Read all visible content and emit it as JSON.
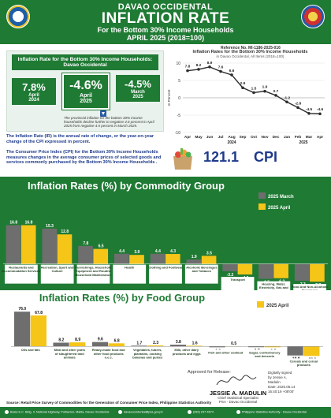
{
  "header": {
    "province": "DAVAO OCCIDENTAL",
    "title": "INFLATION RATE",
    "subtitle": "For the Bottom 30% Income Households",
    "date": "APRIL 2025 (2018=100)"
  },
  "reference": "Reference No. MI-1186-2025-016",
  "summary": {
    "title": "Inflation Rate for the Bottom 30% Income Households: Davao Occidental",
    "boxes": [
      {
        "value": "7.8%",
        "label1": "April",
        "label2": "2024"
      },
      {
        "value": "-4.6%",
        "label1": "April",
        "label2": "2025"
      },
      {
        "value": "-4.5%",
        "label1": "March",
        "label2": "2025"
      }
    ],
    "note": "The provincial inflation for the bottom 30% income households decline further to negative 4.6 percent in April 2025 from negative 4.5 percent in March 2025."
  },
  "definitions": {
    "ir": "The Inflation Rate (IR) is the annual rate of change, or the year-on-year change of the CPI expressed in percent.",
    "cpi": "The Consumer Price Index (CPI) for the Bottom 30% Income Households measures changes in the average consumer prices of selected goods and services commonly purchased by the Bottom 30% Income Households ."
  },
  "cpi": {
    "value": "121.1",
    "label": "CPI"
  },
  "sections": {
    "commodity_title": "Inflation Rates (%) by Commodity Group",
    "food_title": "Inflation Rates (%) by Food Group"
  },
  "approval": {
    "approved_label": "Approved for Release:",
    "name": "JESSIE A. MADULIN",
    "role1": "Chief Statistical Specialist",
    "role2": "PSA - Davao Occidental",
    "digital_sign": [
      "Digitally signed",
      "by Jessie A.",
      "Madulin",
      "Date: 2025.05.14",
      "16:40:19 +08'00'"
    ]
  },
  "source": "Source: Retail Price Survey of Commodities for the Generation of Consumer Price Index, Philippine Statistics Authority",
  "footer": {
    "address": "Bulac E.C. Bldg. II, National Highway, Poblacion, Malita, Davao Occidental",
    "email": "davaooccidental@psa.gov.ph",
    "phone": "(082) 237-4674",
    "facebook": "Philippine Statistics Authority - Davao Occidental"
  },
  "colors": {
    "green": "#1f7a34",
    "march": "#6e6e6e",
    "april": "#f5c518",
    "line": "#2d2d2d",
    "navy": "#1e3a8a"
  },
  "chart_data": [
    {
      "type": "line",
      "title": "Inflation Rates for the Bottom 30% Income Households",
      "subtitle": "in Davao Occidental, All Items (2018=100)",
      "ylabel": "In Percent",
      "categories": [
        "Apr",
        "May",
        "Jun",
        "Jul",
        "Aug",
        "Sep",
        "Oct",
        "Nov",
        "Dec",
        "Jan",
        "Feb",
        "Mar",
        "Apr"
      ],
      "year_labels": [
        "2024",
        "2025"
      ],
      "values": [
        7.8,
        8.2,
        8.9,
        7.6,
        6.6,
        2.9,
        1.5,
        1.9,
        0.7,
        -1.2,
        -2.8,
        -4.5,
        -4.6
      ],
      "value_labels": [
        "7.8",
        "8.2",
        "8.9",
        "7.6",
        "6.6",
        "2.9",
        "1.5",
        "1.9",
        "0.7",
        "-1.2",
        "-2.8",
        "-4.5",
        "-4.6"
      ],
      "ylim": [
        -10,
        10
      ],
      "yticks": [
        10,
        5,
        0,
        -5,
        -10
      ],
      "ytick_labels": [
        "10",
        "5",
        "0",
        "-5",
        "-10"
      ]
    },
    {
      "type": "bar",
      "title": "Inflation Rates (%) by Commodity Group",
      "legend_position": "right",
      "categories": [
        "Restaurants and Accommodation Services",
        "Recreation, Sport and Culture",
        "Furnishings, Household Equipment and Routine Household Maintenance",
        "Health",
        "Clothing and Footwear",
        "Alcoholic Beverages and Tobacco",
        "Transport",
        "Housing, Water, Electricity, Gas and Other Fuels",
        "Food And Non-Alcoholic Beverages"
      ],
      "series": [
        {
          "name": "2025 March",
          "values": [
            16.8,
            15.3,
            7.8,
            4.4,
            4.4,
            1.9,
            -3.2,
            -6.5,
            -7.3
          ],
          "labels": [
            "16.8",
            "15.3",
            "7.8",
            "4.4",
            "4.4",
            "1.9",
            "-3.2",
            "-6.5",
            "-7.3"
          ]
        },
        {
          "name": "2025 April",
          "values": [
            16.8,
            12.8,
            6.5,
            3.9,
            4.3,
            3.5,
            -4.6,
            -6.2,
            -7.7
          ],
          "labels": [
            "16.8",
            "12.8",
            "6.5",
            "3.9",
            "4.3",
            "3.5",
            "-4.6",
            "-6.2",
            "-7.7"
          ]
        }
      ],
      "ylim": [
        -8,
        18
      ]
    },
    {
      "type": "bar",
      "title": "Inflation Rates (%) by Food Group",
      "legend_position": "right",
      "categories": [
        "Oils and fats",
        "Meat and other parts of slaughtered land animals",
        "Ready-made food and other food products n.e.c.",
        "Vegetables, tubers, plantains, cooking bananas and pulses",
        "Milk, other dairy products and eggs",
        "Fish and other seafood",
        "Sugar, confectionery and desserts",
        "Cereals and cereal products"
      ],
      "series": [
        {
          "name": "2025 March",
          "values": [
            76.0,
            8.2,
            9.6,
            1.7,
            3.8,
            -1.9,
            -1.7,
            -19.8
          ],
          "labels": [
            "76.0",
            "8.2",
            "9.6",
            "1.7",
            "3.8",
            "-1.9",
            "-1.7",
            "-19.8"
          ]
        },
        {
          "name": "2025 April",
          "values": [
            67.8,
            8.9,
            6.8,
            2.3,
            1.6,
            0.5,
            -1.9,
            -20.9
          ],
          "labels": [
            "67.8",
            "8.9",
            "6.8",
            "2.3",
            "1.6",
            "0.5",
            "-1.9",
            "-20.9"
          ]
        }
      ],
      "ylim": [
        -22,
        78
      ]
    }
  ]
}
